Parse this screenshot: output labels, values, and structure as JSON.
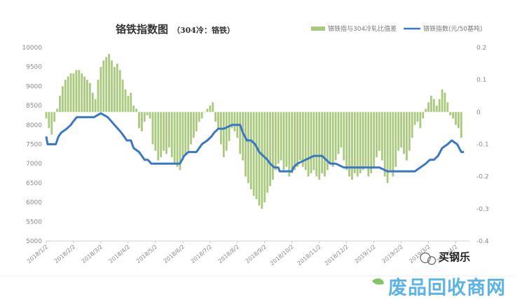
{
  "chart_data": {
    "type": "bar+line",
    "title": "铬铁指数图",
    "title_suffix": "（304冷：铬铁）",
    "legend": [
      {
        "name": "铬铁指与304冷轧比值差",
        "color": "#a9c97c",
        "kind": "bar"
      },
      {
        "name": "铬铁指数(元/50基吨)",
        "color": "#3a77c4",
        "kind": "line"
      }
    ],
    "legend_position": "top-right",
    "left_axis": {
      "min": 5000,
      "max": 10000,
      "step": 500,
      "ticks": [
        "5000",
        "5500",
        "6000",
        "6500",
        "7000",
        "7500",
        "8000",
        "8500",
        "9000",
        "9500",
        "10000"
      ]
    },
    "right_axis": {
      "min": -0.4,
      "max": 0.2,
      "step": 0.1,
      "ticks": [
        "-0.4",
        "-0.3",
        "-0.2",
        "-0.1",
        "0",
        "0.1",
        "0.2"
      ]
    },
    "x_tick_labels": [
      "2018/1/2",
      "2018/2/2",
      "2018/3/2",
      "2018/4/2",
      "2018/5/2",
      "2018/6/2",
      "2018/7/2",
      "2018/8/2",
      "2018/9/2",
      "2018/10/2",
      "2018/11/2",
      "2018/12/2",
      "2019/1/2",
      "2019/2/2",
      "2019/3/2",
      "2019/4/2"
    ],
    "grid": false,
    "line_series": {
      "name": "铬铁指数(元/50基吨)",
      "x": [
        0.0,
        0.05,
        0.1,
        0.35,
        0.45,
        0.55,
        0.75,
        0.9,
        1.0,
        1.12,
        1.25,
        1.4,
        1.6,
        1.75,
        2.0,
        2.25,
        2.5,
        2.75,
        2.95,
        3.1,
        3.2,
        3.4,
        3.6,
        3.72,
        3.85,
        4.0,
        4.15,
        4.5,
        4.9,
        5.05,
        5.2,
        5.3,
        5.5,
        5.7,
        5.9,
        6.05,
        6.15,
        6.3,
        6.5,
        6.8,
        6.95,
        7.1,
        7.2,
        7.35,
        7.5,
        7.65,
        7.8,
        7.95,
        8.1,
        8.2,
        8.35,
        8.5,
        8.55,
        8.7,
        8.85,
        9.0,
        9.05,
        9.2,
        9.5,
        9.8,
        10.0,
        10.1,
        10.25,
        10.4,
        10.6,
        10.9,
        11.1,
        11.5,
        11.9,
        12.05,
        12.2,
        12.5,
        13.0,
        13.5,
        13.7,
        13.9,
        14.05,
        14.2,
        14.35,
        14.5,
        14.7,
        14.85,
        15.05,
        15.2,
        15.3
      ],
      "y": [
        7700,
        7500,
        7500,
        7500,
        7700,
        7800,
        7900,
        8000,
        8100,
        8200,
        8200,
        8200,
        8200,
        8200,
        8300,
        8200,
        8000,
        7800,
        7600,
        7600,
        7400,
        7300,
        7100,
        7100,
        7000,
        7000,
        7000,
        7000,
        7000,
        7200,
        7300,
        7300,
        7300,
        7500,
        7600,
        7700,
        7800,
        7900,
        7900,
        8000,
        8000,
        8000,
        7800,
        7600,
        7600,
        7500,
        7300,
        7200,
        7100,
        7000,
        6900,
        6900,
        6800,
        6800,
        6800,
        6800,
        6900,
        7000,
        7100,
        7200,
        7200,
        7200,
        7100,
        7000,
        7000,
        6900,
        6900,
        6900,
        6900,
        6900,
        6900,
        6800,
        6800,
        6800,
        6900,
        7000,
        7100,
        7100,
        7200,
        7400,
        7500,
        7600,
        7500,
        7300,
        7300
      ]
    },
    "bar_series": {
      "name": "铬铁指与304冷轧比值差",
      "x": [
        0.0,
        0.1,
        0.2,
        0.3,
        0.4,
        0.5,
        0.6,
        0.7,
        0.8,
        0.9,
        1.0,
        1.1,
        1.2,
        1.3,
        1.4,
        1.5,
        1.6,
        1.7,
        1.8,
        1.9,
        2.0,
        2.1,
        2.2,
        2.3,
        2.4,
        2.5,
        2.6,
        2.7,
        2.8,
        2.9,
        3.0,
        3.1,
        3.2,
        3.3,
        3.4,
        3.5,
        3.6,
        3.7,
        3.8,
        3.9,
        4.0,
        4.1,
        4.2,
        4.3,
        4.4,
        4.5,
        4.6,
        4.7,
        4.8,
        4.9,
        5.0,
        5.1,
        5.2,
        5.3,
        5.4,
        5.5,
        5.6,
        5.7,
        5.8,
        5.9,
        6.0,
        6.1,
        6.2,
        6.3,
        6.4,
        6.5,
        6.6,
        6.7,
        6.8,
        6.9,
        7.0,
        7.1,
        7.2,
        7.3,
        7.4,
        7.5,
        7.6,
        7.7,
        7.8,
        7.9,
        8.0,
        8.1,
        8.2,
        8.3,
        8.4,
        8.5,
        8.6,
        8.7,
        8.8,
        8.9,
        9.0,
        9.1,
        9.2,
        9.3,
        9.4,
        9.5,
        9.6,
        9.7,
        9.8,
        9.9,
        10.0,
        10.1,
        10.2,
        10.3,
        10.4,
        10.5,
        10.6,
        10.7,
        10.8,
        10.9,
        11.0,
        11.1,
        11.2,
        11.3,
        11.4,
        11.5,
        11.6,
        11.7,
        11.8,
        11.9,
        12.0,
        12.1,
        12.2,
        12.3,
        12.4,
        12.5,
        12.6,
        12.7,
        12.8,
        12.9,
        13.0,
        13.1,
        13.2,
        13.3,
        13.4,
        13.5,
        13.6,
        13.7,
        13.8,
        13.9,
        14.0,
        14.1,
        14.2,
        14.3,
        14.4,
        14.5,
        14.6,
        14.7,
        14.8,
        14.9,
        15.0,
        15.1,
        15.2
      ],
      "y": [
        -0.02,
        -0.05,
        -0.07,
        -0.03,
        0.01,
        0.05,
        0.08,
        0.1,
        0.11,
        0.12,
        0.12,
        0.13,
        0.13,
        0.12,
        0.11,
        0.1,
        0.09,
        0.06,
        0.04,
        0.1,
        0.14,
        0.16,
        0.17,
        0.18,
        0.16,
        0.14,
        0.15,
        0.13,
        0.1,
        0.07,
        0.05,
        0.06,
        0.02,
        0.01,
        -0.05,
        -0.06,
        -0.03,
        -0.01,
        -0.02,
        -0.1,
        -0.12,
        -0.15,
        -0.14,
        -0.12,
        -0.13,
        -0.11,
        -0.14,
        -0.16,
        -0.17,
        -0.18,
        -0.15,
        -0.13,
        -0.12,
        -0.1,
        -0.08,
        -0.06,
        -0.03,
        -0.02,
        0.0,
        0.01,
        0.02,
        0.03,
        -0.03,
        -0.05,
        -0.1,
        -0.14,
        -0.12,
        -0.09,
        -0.05,
        -0.06,
        -0.08,
        -0.13,
        -0.15,
        -0.2,
        -0.22,
        -0.24,
        -0.26,
        -0.27,
        -0.29,
        -0.3,
        -0.28,
        -0.25,
        -0.23,
        -0.21,
        -0.18,
        -0.16,
        -0.15,
        -0.18,
        -0.17,
        -0.2,
        -0.19,
        -0.18,
        -0.17,
        -0.15,
        -0.17,
        -0.18,
        -0.2,
        -0.19,
        -0.18,
        -0.2,
        -0.21,
        -0.19,
        -0.2,
        -0.18,
        -0.16,
        -0.17,
        -0.15,
        -0.13,
        -0.11,
        -0.15,
        -0.18,
        -0.2,
        -0.21,
        -0.19,
        -0.2,
        -0.19,
        -0.18,
        -0.17,
        -0.2,
        -0.19,
        -0.17,
        -0.14,
        -0.12,
        -0.15,
        -0.2,
        -0.22,
        -0.18,
        -0.2,
        -0.17,
        -0.12,
        -0.11,
        -0.13,
        -0.15,
        -0.12,
        -0.08,
        -0.04,
        -0.03,
        -0.05,
        -0.02,
        0.01,
        0.03,
        0.05,
        0.04,
        0.02,
        0.04,
        0.07,
        0.06,
        0.03,
        -0.01,
        -0.02,
        -0.04,
        -0.05,
        -0.08
      ]
    }
  },
  "watermark": {
    "handle": "买钢乐",
    "site": "废品回收商网",
    "site_color": "#5bb3e6"
  }
}
